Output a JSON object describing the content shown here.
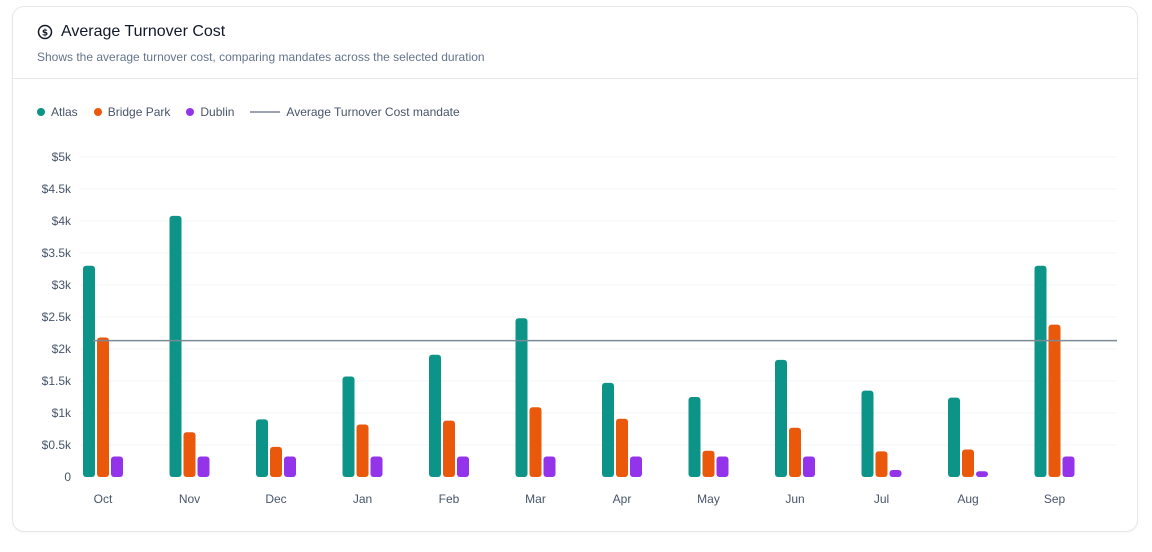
{
  "card": {
    "title": "Average Turnover Cost",
    "subtitle": "Shows the average turnover cost, comparing mandates across the selected duration"
  },
  "colors": {
    "Atlas": "#0d9488",
    "Bridge Park": "#ea580c",
    "Dublin": "#9333ea",
    "mandate_line": "#94a3b8",
    "grid": "#f1f5f9"
  },
  "legend": [
    {
      "label": "Atlas",
      "kind": "dot",
      "color": "#0d9488"
    },
    {
      "label": "Bridge Park",
      "kind": "dot",
      "color": "#ea580c"
    },
    {
      "label": "Dublin",
      "kind": "dot",
      "color": "#9333ea"
    },
    {
      "label": "Average Turnover Cost mandate",
      "kind": "line",
      "color": "#94a3b8"
    }
  ],
  "chart_data": {
    "type": "bar",
    "categories": [
      "Oct",
      "Nov",
      "Dec",
      "Jan",
      "Feb",
      "Mar",
      "Apr",
      "May",
      "Jun",
      "Jul",
      "Aug",
      "Sep"
    ],
    "series": [
      {
        "name": "Atlas",
        "values": [
          3300,
          4080,
          900,
          1570,
          1910,
          2480,
          1470,
          1250,
          1830,
          1350,
          1240,
          3300
        ]
      },
      {
        "name": "Bridge Park",
        "values": [
          2180,
          700,
          470,
          820,
          880,
          1090,
          910,
          410,
          770,
          400,
          430,
          2380
        ]
      },
      {
        "name": "Dublin",
        "values": [
          320,
          320,
          320,
          320,
          320,
          320,
          320,
          320,
          320,
          110,
          90,
          320
        ]
      }
    ],
    "reference_line": {
      "name": "Average Turnover Cost mandate",
      "value": 2130
    },
    "yticks": [
      0,
      500,
      1000,
      1500,
      2000,
      2500,
      3000,
      3500,
      4000,
      4500,
      5000
    ],
    "ytick_labels": [
      "0",
      "$0.5k",
      "$1k",
      "$1.5k",
      "$2k",
      "$2.5k",
      "$3k",
      "$3.5k",
      "$4k",
      "$4.5k",
      "$5k"
    ],
    "ylim": [
      0,
      5000
    ],
    "grid": true,
    "legend_position": "top-left"
  }
}
